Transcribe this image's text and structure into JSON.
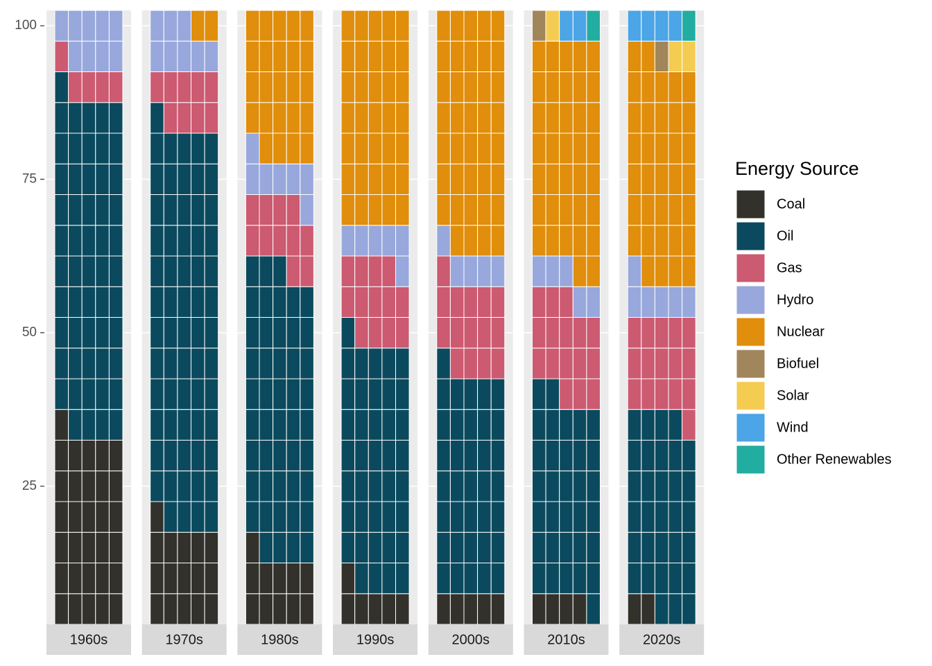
{
  "chart_data": {
    "type": "waffle",
    "facets": [
      "1960s",
      "1970s",
      "1980s",
      "1990s",
      "2000s",
      "2010s",
      "2020s"
    ],
    "legend_title": "Energy Source",
    "ylim": [
      2.5,
      102.5
    ],
    "yticks": [
      25,
      50,
      75,
      100
    ],
    "grid": true,
    "series": [
      {
        "name": "Coal",
        "color": "#33312b",
        "values": [
          31,
          16,
          11,
          6,
          5,
          4,
          2
        ]
      },
      {
        "name": "Oil",
        "color": "#0b4a5e",
        "values": [
          55,
          65,
          47,
          40,
          36,
          33,
          32
        ]
      },
      {
        "name": "Gas",
        "color": "#cc5a71",
        "values": [
          5,
          9,
          11,
          13,
          15,
          16,
          16
        ]
      },
      {
        "name": "Hydro",
        "color": "#98a8dc",
        "values": [
          9,
          8,
          7,
          6,
          5,
          5,
          6
        ]
      },
      {
        "name": "Nuclear",
        "color": "#e08e0b",
        "values": [
          0,
          2,
          24,
          35,
          39,
          37,
          36
        ]
      },
      {
        "name": "Biofuel",
        "color": "#a0865a",
        "values": [
          0,
          0,
          0,
          0,
          0,
          1,
          1
        ]
      },
      {
        "name": "Solar",
        "color": "#f4cc52",
        "values": [
          0,
          0,
          0,
          0,
          0,
          1,
          2
        ]
      },
      {
        "name": "Wind",
        "color": "#4ba5e6",
        "values": [
          0,
          0,
          0,
          0,
          0,
          2,
          4
        ]
      },
      {
        "name": "Other Renewables",
        "color": "#22ada1",
        "values": [
          0,
          0,
          0,
          0,
          0,
          1,
          1
        ]
      }
    ]
  }
}
